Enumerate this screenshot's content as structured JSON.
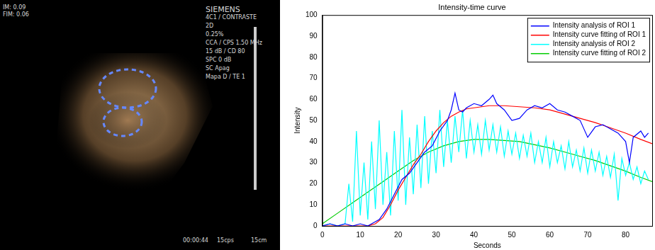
{
  "image_panel": {
    "top_left": [
      "IM: 0.09",
      "FIM: 0.06"
    ],
    "top_right": [
      "SIEMENS",
      "4C1 / CONTRASTE",
      "2D",
      "0.25%",
      "CCA / CPS 1.50 MHz",
      "15 dB / CD 80",
      "SPC 0 dB",
      "SC Apag",
      "Mapa D / TE 1"
    ],
    "bottom": [
      "00:00:44",
      "15cps",
      "15cm"
    ]
  },
  "chart_data": {
    "type": "line",
    "title": "Intensity-time curve",
    "x_label": "Seconds",
    "y_label": "Intensity",
    "xlim": [
      0,
      87
    ],
    "xticks": [
      0,
      10,
      20,
      30,
      40,
      50,
      60,
      70,
      80
    ],
    "ylim": [
      0,
      100
    ],
    "yticks": [
      0,
      10,
      20,
      30,
      40,
      50,
      60,
      70,
      80,
      90,
      100
    ],
    "grid": false,
    "legend": "upper right",
    "series": [
      {
        "name": "Intensity analysis of ROI 1",
        "color": "#0000ff",
        "x": [
          0,
          2,
          4,
          6,
          8,
          10,
          12,
          13,
          15,
          17,
          19,
          21,
          23,
          25,
          27,
          29,
          31,
          33,
          34,
          35,
          36,
          37,
          38,
          40,
          42,
          44,
          45,
          46,
          48,
          50,
          52,
          54,
          56,
          58,
          60,
          62,
          64,
          66,
          68,
          70,
          72,
          74,
          76,
          78,
          80,
          81,
          82,
          84,
          85,
          86
        ],
        "values": [
          0,
          1,
          0,
          1,
          0,
          1,
          0,
          1,
          3,
          8,
          15,
          22,
          25,
          30,
          35,
          38,
          45,
          50,
          55,
          63,
          55,
          54,
          56,
          58,
          57,
          60,
          62,
          58,
          55,
          50,
          51,
          55,
          57,
          56,
          58,
          55,
          54,
          52,
          50,
          42,
          47,
          48,
          46,
          44,
          40,
          30,
          42,
          45,
          42,
          44
        ]
      },
      {
        "name": "Intensity curve fitting of ROI 1",
        "color": "#ff0000",
        "x": [
          0,
          12,
          14,
          16,
          18,
          20,
          22,
          24,
          26,
          28,
          30,
          32,
          34,
          36,
          38,
          40,
          44,
          48,
          52,
          56,
          60,
          64,
          68,
          72,
          76,
          80,
          84,
          87
        ],
        "values": [
          0,
          0,
          1,
          4,
          10,
          17,
          23,
          29,
          34,
          40,
          45,
          49,
          52,
          54,
          55.5,
          56,
          57,
          57,
          56.5,
          56,
          55,
          53,
          51,
          49,
          46.5,
          44,
          41,
          39
        ]
      },
      {
        "name": "Intensity analysis of ROI 2",
        "color": "#00ffff",
        "x": [
          0,
          2,
          4,
          6,
          7,
          8,
          9,
          10,
          11,
          12,
          13,
          14,
          15,
          16,
          17,
          18,
          19,
          20,
          21,
          22,
          23,
          24,
          25,
          26,
          27,
          28,
          29,
          30,
          31,
          32,
          33,
          34,
          35,
          36,
          37,
          38,
          39,
          40,
          41,
          42,
          43,
          44,
          45,
          46,
          47,
          48,
          49,
          50,
          51,
          52,
          53,
          54,
          55,
          56,
          57,
          58,
          59,
          60,
          61,
          62,
          63,
          64,
          65,
          66,
          67,
          68,
          69,
          70,
          71,
          72,
          73,
          74,
          75,
          76,
          77,
          78,
          79,
          80,
          81,
          82,
          83,
          84,
          85,
          86
        ],
        "values": [
          0,
          1,
          0,
          1,
          20,
          2,
          45,
          5,
          30,
          3,
          40,
          8,
          50,
          10,
          35,
          5,
          45,
          12,
          55,
          10,
          42,
          15,
          48,
          18,
          52,
          20,
          45,
          25,
          55,
          28,
          50,
          30,
          52,
          35,
          55,
          32,
          50,
          35,
          48,
          34,
          50,
          36,
          48,
          35,
          47,
          33,
          45,
          34,
          44,
          32,
          43,
          33,
          44,
          30,
          40,
          30,
          42,
          28,
          40,
          30,
          38,
          27,
          40,
          28,
          36,
          26,
          37,
          25,
          36,
          26,
          35,
          24,
          33,
          23,
          34,
          12,
          32,
          24,
          30,
          22,
          28,
          20,
          26,
          22
        ]
      },
      {
        "name": "Intensity curve fitting of ROI 2",
        "color": "#00cc00",
        "x": [
          0,
          4,
          8,
          12,
          16,
          20,
          24,
          28,
          32,
          36,
          40,
          44,
          48,
          52,
          56,
          60,
          64,
          68,
          72,
          76,
          80,
          84,
          87
        ],
        "values": [
          1,
          6,
          11,
          16,
          21,
          26,
          31,
          35,
          38,
          40,
          41,
          41,
          40.5,
          40,
          38.5,
          37,
          35,
          33,
          31,
          28.5,
          26,
          23,
          21
        ]
      }
    ]
  }
}
